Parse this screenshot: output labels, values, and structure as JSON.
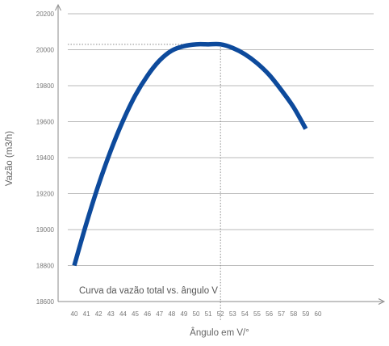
{
  "chart_data": {
    "type": "line",
    "title": "",
    "xlabel": "Ângulo em V/°",
    "ylabel": "Vazão (m3/h)",
    "annotation": "Curva da vazão total vs. ângulo V",
    "x_ticks": [
      "40",
      "41",
      "42",
      "43",
      "44",
      "45",
      "46",
      "47",
      "48",
      "49",
      "50",
      "51",
      "52",
      "53",
      "54",
      "55",
      "56",
      "57",
      "58",
      "59",
      "60"
    ],
    "y_ticks": [
      "18600",
      "18800",
      "19000",
      "19200",
      "19400",
      "19600",
      "19800",
      "20000",
      "20200"
    ],
    "xlim": [
      40,
      60
    ],
    "ylim": [
      18600,
      20200
    ],
    "grid": true,
    "peak_marker": {
      "x": 52,
      "y": 20030
    },
    "series": [
      {
        "color": "#0d4a9c",
        "x": [
          40,
          41,
          42,
          43,
          44,
          45,
          46,
          47,
          48,
          49,
          50,
          51,
          52,
          53,
          54,
          55,
          56,
          57,
          58,
          59
        ],
        "values": [
          18800,
          19035,
          19250,
          19440,
          19605,
          19745,
          19855,
          19940,
          19995,
          20020,
          20030,
          20030,
          20030,
          20010,
          19975,
          19925,
          19860,
          19775,
          19680,
          19560
        ]
      }
    ]
  }
}
